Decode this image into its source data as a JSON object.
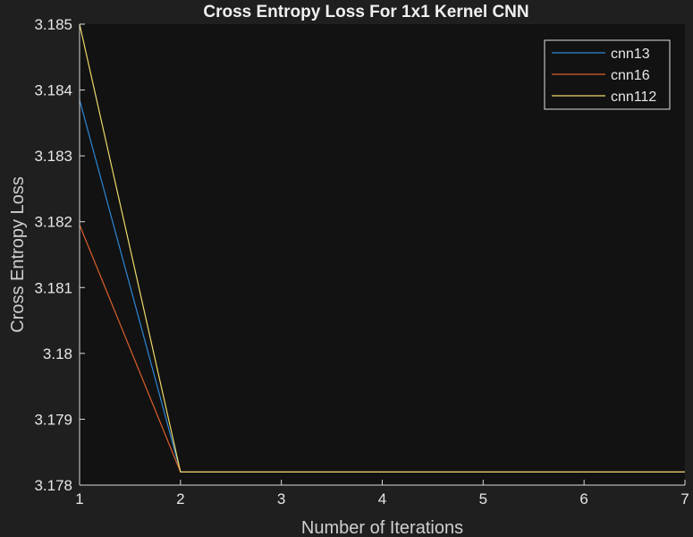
{
  "chart_data": {
    "type": "line",
    "title": "Cross Entropy Loss For 1x1 Kernel CNN",
    "xlabel": "Number of Iterations",
    "ylabel": "Cross Entropy Loss",
    "x": [
      1,
      2,
      3,
      4,
      5,
      6,
      7
    ],
    "xlim": [
      1,
      7
    ],
    "ylim": [
      3.178,
      3.185
    ],
    "xticks": [
      "1",
      "2",
      "3",
      "4",
      "5",
      "6",
      "7"
    ],
    "yticks": [
      {
        "value": 3.178,
        "label": "3.178"
      },
      {
        "value": 3.179,
        "label": "3.179"
      },
      {
        "value": 3.18,
        "label": "3.18"
      },
      {
        "value": 3.181,
        "label": "3.181"
      },
      {
        "value": 3.182,
        "label": "3.182"
      },
      {
        "value": 3.183,
        "label": "3.183"
      },
      {
        "value": 3.184,
        "label": "3.184"
      },
      {
        "value": 3.185,
        "label": "3.185"
      }
    ],
    "grid": false,
    "legend_position": "top-right",
    "series": [
      {
        "name": "cnn13",
        "color": "#2e86d6",
        "values": [
          3.18385,
          3.1782,
          3.1782,
          3.1782,
          3.1782,
          3.1782,
          3.1782
        ]
      },
      {
        "name": "cnn16",
        "color": "#d9602b",
        "values": [
          3.18195,
          3.1782,
          3.1782,
          3.1782,
          3.1782,
          3.1782,
          3.1782
        ]
      },
      {
        "name": "cnn112",
        "color": "#ecd96a",
        "values": [
          3.185,
          3.1782,
          3.1782,
          3.1782,
          3.1782,
          3.1782,
          3.1782
        ]
      }
    ]
  },
  "colors": {
    "figure_background": "#1f1f1f",
    "axes_background": "#121212",
    "axis_line": "#d8d8d8"
  }
}
